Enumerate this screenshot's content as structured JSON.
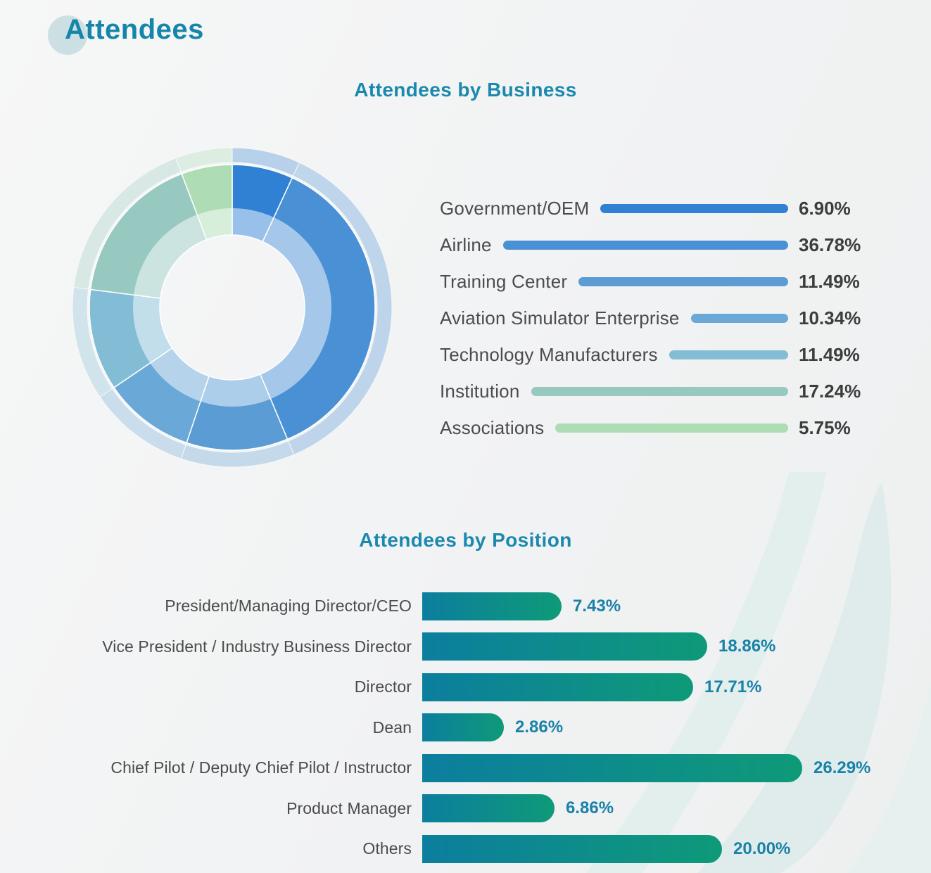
{
  "main_title": "Attendees",
  "theme": {
    "page_title_color": "#1585a9",
    "section_title_color": "#1b89ae",
    "label_color": "#4b4b4b",
    "business_value_color": "#3d3d3d",
    "position_value_color": "#1a81a8",
    "title_circle_color": "#cce0e3",
    "background_swoosh_color": "#dfeceb"
  },
  "chart_data": [
    {
      "type": "pie",
      "variant": "donut",
      "title": "Attendees by Business",
      "legend_position": "right",
      "segments": [
        {
          "label": "Government/OEM",
          "value": 6.9,
          "display": "6.90%",
          "color": "#3080d4"
        },
        {
          "label": "Airline",
          "value": 36.78,
          "display": "36.78%",
          "color": "#4a90d5"
        },
        {
          "label": "Training Center",
          "value": 11.49,
          "display": "11.49%",
          "color": "#5b9cd4"
        },
        {
          "label": "Aviation Simulator Enterprise",
          "value": 10.34,
          "display": "10.34%",
          "color": "#6aa8d8"
        },
        {
          "label": "Technology Manufacturers",
          "value": 11.49,
          "display": "11.49%",
          "color": "#83bdd5"
        },
        {
          "label": "Institution",
          "value": 17.24,
          "display": "17.24%",
          "color": "#97c9c1"
        },
        {
          "label": "Associations",
          "value": 5.75,
          "display": "5.75%",
          "color": "#aedcb4"
        }
      ]
    },
    {
      "type": "bar",
      "orientation": "horizontal",
      "title": "Attendees by Position",
      "categories": [
        "President/Managing Director/CEO",
        "Vice President / Industry Business Director",
        "Director",
        "Dean",
        "Chief Pilot / Deputy Chief Pilot / Instructor",
        "Product Manager",
        "Others"
      ],
      "values": [
        7.43,
        18.86,
        17.71,
        2.86,
        26.29,
        6.86,
        20.0
      ],
      "value_labels": [
        "7.43%",
        "18.86%",
        "17.71%",
        "2.86%",
        "26.29%",
        "6.86%",
        "20.00%"
      ],
      "bar_gradient": [
        "#0c7e9e",
        "#0e9a78"
      ],
      "xlim": [
        0,
        30
      ],
      "grid": false
    }
  ]
}
